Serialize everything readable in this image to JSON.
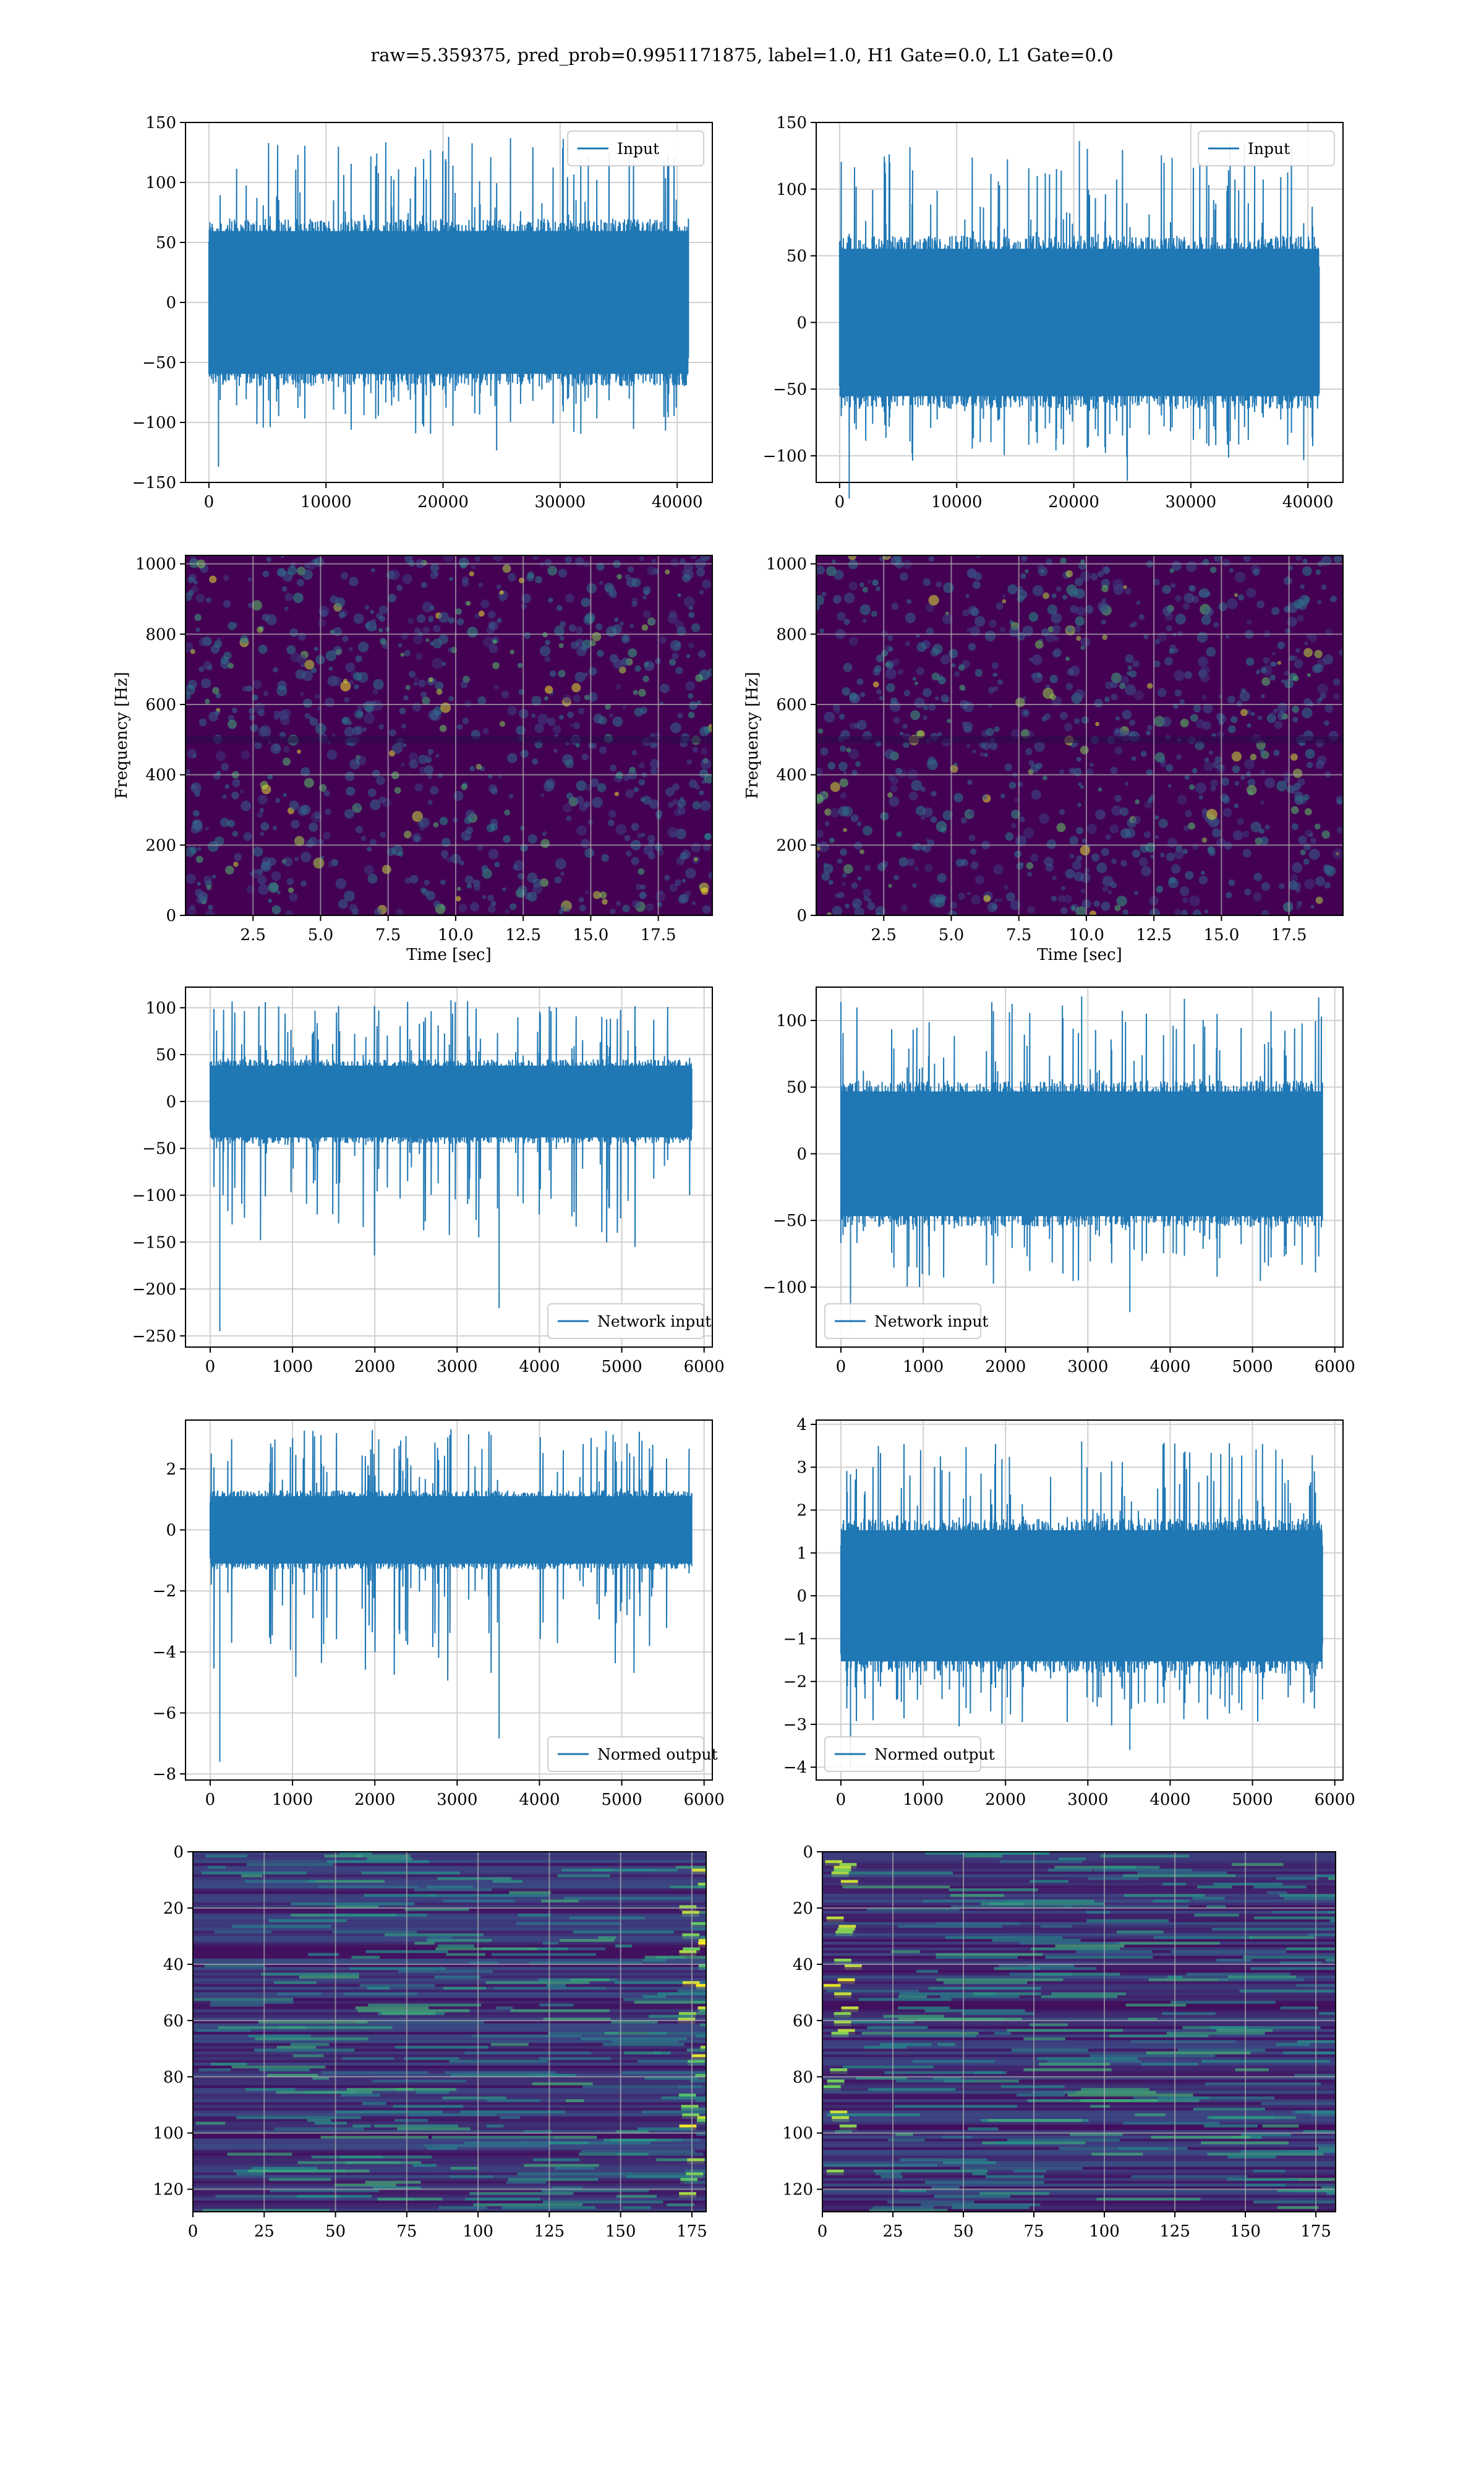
{
  "suptitle": "raw=5.359375, pred_prob=0.9951171875, label=1.0, H1 Gate=0.0, L1 Gate=0.0",
  "colors": {
    "series": "#1f77b4",
    "grid": "#d0d0d0",
    "viridis_bg": "#440154"
  },
  "chart_data": [
    {
      "id": "input-left",
      "type": "line",
      "series": [
        {
          "name": "Input"
        }
      ],
      "legend": "upper right",
      "grid": true,
      "xlim": [
        -2000,
        43000
      ],
      "ylim": [
        -150,
        150
      ],
      "xticks": [
        0,
        10000,
        20000,
        30000,
        40000
      ],
      "yticks": [
        -150,
        -100,
        -50,
        0,
        50,
        100,
        150
      ],
      "xticklabels": [
        "0",
        "10000",
        "20000",
        "30000",
        "40000"
      ],
      "yticklabels": [
        "−150",
        "−100",
        "−50",
        "0",
        "50",
        "100",
        "150"
      ],
      "signal": {
        "x_range": [
          0,
          40960
        ],
        "band": [
          -70,
          70
        ],
        "peak_max": 138,
        "peak_min": -137
      }
    },
    {
      "id": "input-right",
      "type": "line",
      "series": [
        {
          "name": "Input"
        }
      ],
      "legend": "upper right",
      "grid": true,
      "xlim": [
        -2000,
        43000
      ],
      "ylim": [
        -120,
        150
      ],
      "xticks": [
        0,
        10000,
        20000,
        30000,
        40000
      ],
      "yticks": [
        -100,
        -50,
        0,
        50,
        100,
        150
      ],
      "xticklabels": [
        "0",
        "10000",
        "20000",
        "30000",
        "40000"
      ],
      "yticklabels": [
        "−100",
        "−50",
        "0",
        "50",
        "100",
        "150"
      ],
      "signal": {
        "x_range": [
          0,
          40960
        ],
        "band": [
          -65,
          65
        ],
        "peak_max": 136,
        "peak_min": -132
      }
    },
    {
      "id": "spec-left",
      "type": "heatmap",
      "grid": true,
      "xlabel": "Time [sec]",
      "ylabel": "Frequency [Hz]",
      "xlim": [
        0,
        19.5
      ],
      "ylim": [
        0,
        1024
      ],
      "xticks": [
        2.5,
        5.0,
        7.5,
        10.0,
        12.5,
        15.0,
        17.5
      ],
      "yticks": [
        0,
        200,
        400,
        600,
        800,
        1000
      ],
      "xticklabels": [
        "2.5",
        "5.0",
        "7.5",
        "10.0",
        "12.5",
        "15.0",
        "17.5"
      ],
      "yticklabels": [
        "0",
        "200",
        "400",
        "600",
        "800",
        "1000"
      ]
    },
    {
      "id": "spec-right",
      "type": "heatmap",
      "grid": true,
      "xlabel": "Time [sec]",
      "ylabel": "Frequency [Hz]",
      "xlim": [
        0,
        19.5
      ],
      "ylim": [
        0,
        1024
      ],
      "xticks": [
        2.5,
        5.0,
        7.5,
        10.0,
        12.5,
        15.0,
        17.5
      ],
      "yticks": [
        0,
        200,
        400,
        600,
        800,
        1000
      ],
      "xticklabels": [
        "2.5",
        "5.0",
        "7.5",
        "10.0",
        "12.5",
        "15.0",
        "17.5"
      ],
      "yticklabels": [
        "0",
        "200",
        "400",
        "600",
        "800",
        "1000"
      ]
    },
    {
      "id": "network-left",
      "type": "line",
      "series": [
        {
          "name": "Network input"
        }
      ],
      "legend": "lower right",
      "grid": true,
      "xlim": [
        -300,
        6100
      ],
      "ylim": [
        -262,
        122
      ],
      "xticks": [
        0,
        1000,
        2000,
        3000,
        4000,
        5000,
        6000
      ],
      "yticks": [
        -250,
        -200,
        -150,
        -100,
        -50,
        0,
        50,
        100
      ],
      "xticklabels": [
        "0",
        "1000",
        "2000",
        "3000",
        "4000",
        "5000",
        "6000"
      ],
      "yticklabels": [
        "−250",
        "−200",
        "−150",
        "−100",
        "−50",
        "0",
        "50",
        "100"
      ],
      "signal": {
        "x_range": [
          0,
          5850
        ],
        "band": [
          -45,
          45
        ],
        "peak_max": 108,
        "peak_min": -245
      }
    },
    {
      "id": "network-right",
      "type": "line",
      "series": [
        {
          "name": "Network input"
        }
      ],
      "legend": "lower left",
      "grid": true,
      "xlim": [
        -300,
        6100
      ],
      "ylim": [
        -145,
        125
      ],
      "xticks": [
        0,
        1000,
        2000,
        3000,
        4000,
        5000,
        6000
      ],
      "yticks": [
        -100,
        -50,
        0,
        50,
        100
      ],
      "xticklabels": [
        "0",
        "1000",
        "2000",
        "3000",
        "4000",
        "5000",
        "6000"
      ],
      "yticklabels": [
        "−100",
        "−50",
        "0",
        "50",
        "100"
      ],
      "signal": {
        "x_range": [
          0,
          5850
        ],
        "band": [
          -55,
          55
        ],
        "peak_max": 118,
        "peak_min": -132
      }
    },
    {
      "id": "normed-left",
      "type": "line",
      "series": [
        {
          "name": "Normed output"
        }
      ],
      "legend": "lower right",
      "grid": true,
      "xlim": [
        -300,
        6100
      ],
      "ylim": [
        -8.2,
        3.6
      ],
      "xticks": [
        0,
        1000,
        2000,
        3000,
        4000,
        5000,
        6000
      ],
      "yticks": [
        -8,
        -6,
        -4,
        -2,
        0,
        2
      ],
      "xticklabels": [
        "0",
        "1000",
        "2000",
        "3000",
        "4000",
        "5000",
        "6000"
      ],
      "yticklabels": [
        "−8",
        "−6",
        "−4",
        "−2",
        "0",
        "2"
      ],
      "signal": {
        "x_range": [
          0,
          5850
        ],
        "band": [
          -1.3,
          1.3
        ],
        "peak_max": 3.3,
        "peak_min": -7.6
      }
    },
    {
      "id": "normed-right",
      "type": "line",
      "series": [
        {
          "name": "Normed output"
        }
      ],
      "legend": "lower left",
      "grid": true,
      "xlim": [
        -300,
        6100
      ],
      "ylim": [
        -4.3,
        4.1
      ],
      "xticks": [
        0,
        1000,
        2000,
        3000,
        4000,
        5000,
        6000
      ],
      "yticks": [
        -4,
        -3,
        -2,
        -1,
        0,
        1,
        2,
        3,
        4
      ],
      "xticklabels": [
        "0",
        "1000",
        "2000",
        "3000",
        "4000",
        "5000",
        "6000"
      ],
      "yticklabels": [
        "−4",
        "−3",
        "−2",
        "−1",
        "0",
        "1",
        "2",
        "3",
        "4"
      ],
      "signal": {
        "x_range": [
          0,
          5850
        ],
        "band": [
          -1.8,
          1.8
        ],
        "peak_max": 3.6,
        "peak_min": -4.0
      }
    },
    {
      "id": "features-left",
      "type": "heatmap",
      "grid": true,
      "xlim": [
        0,
        180
      ],
      "ylim": [
        128,
        0
      ],
      "xticks": [
        0,
        25,
        50,
        75,
        100,
        125,
        150,
        175
      ],
      "yticks": [
        0,
        20,
        40,
        60,
        80,
        100,
        120
      ],
      "xticklabels": [
        "0",
        "25",
        "50",
        "75",
        "100",
        "125",
        "150",
        "175"
      ],
      "yticklabels": [
        "0",
        "20",
        "40",
        "60",
        "80",
        "100",
        "120"
      ]
    },
    {
      "id": "features-right",
      "type": "heatmap",
      "grid": true,
      "xlim": [
        0,
        182
      ],
      "ylim": [
        128,
        0
      ],
      "xticks": [
        0,
        25,
        50,
        75,
        100,
        125,
        150,
        175
      ],
      "yticks": [
        0,
        20,
        40,
        60,
        80,
        100,
        120
      ],
      "xticklabels": [
        "0",
        "25",
        "50",
        "75",
        "100",
        "125",
        "150",
        "175"
      ],
      "yticklabels": [
        "0",
        "20",
        "40",
        "60",
        "80",
        "100",
        "120"
      ]
    }
  ]
}
